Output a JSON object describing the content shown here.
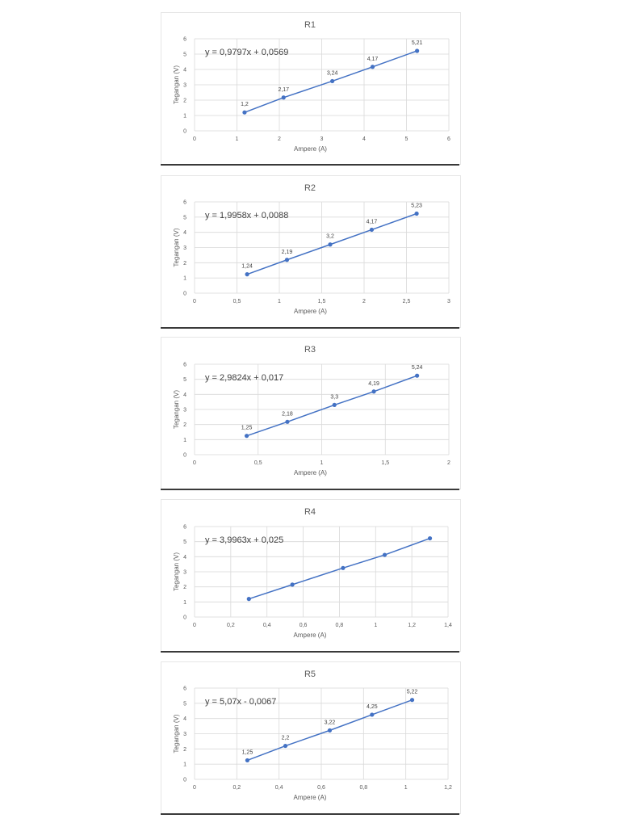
{
  "colors": {
    "series": "#4472c4",
    "grid": "#d9d9d9",
    "text": "#595959"
  },
  "chart_data": [
    {
      "type": "scatter",
      "title": "R1",
      "xlabel": "Ampere (A)",
      "ylabel": "Tegangan (V)",
      "xlim": [
        0,
        6
      ],
      "ylim": [
        0,
        6
      ],
      "xticks": [
        "0",
        "1",
        "2",
        "3",
        "4",
        "5",
        "6"
      ],
      "yticks": [
        "0",
        "1",
        "2",
        "3",
        "4",
        "5",
        "6"
      ],
      "grid": true,
      "equation": "y = 0,9797x + 0,0569",
      "series": [
        {
          "x": [
            1.18,
            2.1,
            3.25,
            4.2,
            5.25
          ],
          "values": [
            1.2,
            2.17,
            3.24,
            4.17,
            5.21
          ]
        }
      ],
      "data_labels": [
        "1,2",
        "2,17",
        "3,24",
        "4,17",
        "5,21"
      ]
    },
    {
      "type": "scatter",
      "title": "R2",
      "xlabel": "Ampere (A)",
      "ylabel": "Tegangan (V)",
      "xlim": [
        0,
        3
      ],
      "ylim": [
        0,
        6
      ],
      "xticks": [
        "0",
        "0,5",
        "1",
        "1,5",
        "2",
        "2,5",
        "3"
      ],
      "yticks": [
        "0",
        "1",
        "2",
        "3",
        "4",
        "5",
        "6"
      ],
      "grid": true,
      "equation": "y = 1,9958x + 0,0088",
      "series": [
        {
          "x": [
            0.62,
            1.09,
            1.6,
            2.09,
            2.62
          ],
          "values": [
            1.24,
            2.19,
            3.2,
            4.17,
            5.23
          ]
        }
      ],
      "data_labels": [
        "1,24",
        "2,19",
        "3,2",
        "4,17",
        "5,23"
      ]
    },
    {
      "type": "scatter",
      "title": "R3",
      "xlabel": "Ampere (A)",
      "ylabel": "Tegangan (V)",
      "xlim": [
        0,
        2
      ],
      "ylim": [
        0,
        6
      ],
      "xticks": [
        "0",
        "0,5",
        "1",
        "1,5",
        "2"
      ],
      "yticks": [
        "0",
        "1",
        "2",
        "3",
        "4",
        "5",
        "6"
      ],
      "grid": true,
      "equation": "y = 2,9824x + 0,017",
      "series": [
        {
          "x": [
            0.41,
            0.73,
            1.1,
            1.41,
            1.75
          ],
          "values": [
            1.25,
            2.18,
            3.3,
            4.19,
            5.24
          ]
        }
      ],
      "data_labels": [
        "1,25",
        "2,18",
        "3,3",
        "4,19",
        "5,24"
      ]
    },
    {
      "type": "scatter",
      "title": "R4",
      "xlabel": "Ampere (A)",
      "ylabel": "Tegangan (V)",
      "xlim": [
        0,
        1.4
      ],
      "ylim": [
        0,
        6
      ],
      "xticks": [
        "0",
        "0,2",
        "0,4",
        "0,6",
        "0,8",
        "1",
        "1,2",
        "1,4"
      ],
      "yticks": [
        "0",
        "1",
        "2",
        "3",
        "4",
        "5",
        "6"
      ],
      "grid": true,
      "equation": "y = 3,9963x + 0,025",
      "series": [
        {
          "x": [
            0.3,
            0.54,
            0.82,
            1.05,
            1.3
          ],
          "values": [
            1.2,
            2.15,
            3.25,
            4.12,
            5.22
          ]
        }
      ],
      "data_labels": []
    },
    {
      "type": "scatter",
      "title": "R5",
      "xlabel": "Ampere (A)",
      "ylabel": "Tegangan (V)",
      "xlim": [
        0,
        1.2
      ],
      "ylim": [
        0,
        6
      ],
      "xticks": [
        "0",
        "0,2",
        "0,4",
        "0,6",
        "0,8",
        "1",
        "1,2"
      ],
      "yticks": [
        "0",
        "1",
        "2",
        "3",
        "4",
        "5",
        "6"
      ],
      "grid": true,
      "equation": "y = 5,07x - 0,0067",
      "series": [
        {
          "x": [
            0.25,
            0.43,
            0.64,
            0.84,
            1.03
          ],
          "values": [
            1.25,
            2.2,
            3.22,
            4.25,
            5.22
          ]
        }
      ],
      "data_labels": [
        "1,25",
        "2,2",
        "3,22",
        "4,25",
        "5,22"
      ]
    }
  ]
}
